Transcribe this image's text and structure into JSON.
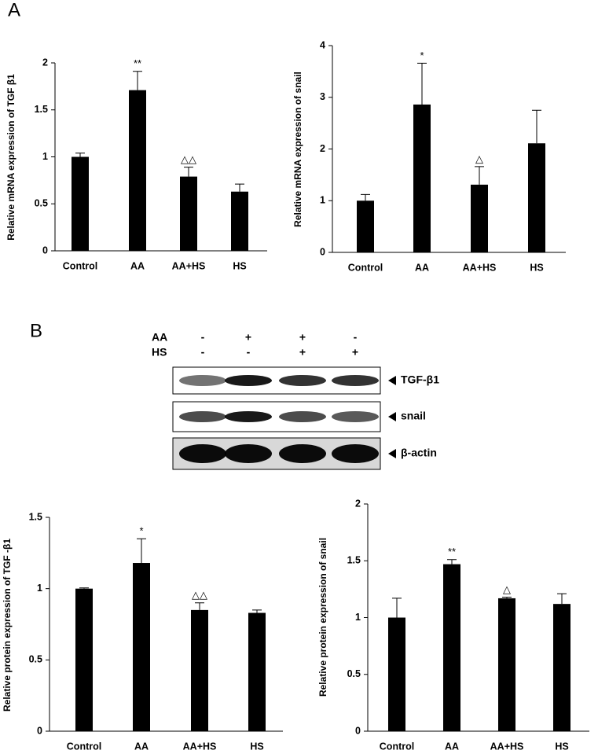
{
  "panel_labels": [
    "A",
    "B"
  ],
  "blot": {
    "rows": [
      {
        "name": "AA",
        "signs": [
          "-",
          "+",
          "+",
          "-"
        ]
      },
      {
        "name": "HS",
        "signs": [
          "-",
          "-",
          "+",
          "+"
        ]
      }
    ],
    "bands": [
      "TGF-β1",
      "snail",
      "β-actin"
    ]
  },
  "chart_data": [
    {
      "type": "bar",
      "y_label": "Relative mRNA expression of  TGF β1",
      "color": "#000000",
      "categories": [
        "Control",
        "AA",
        "AA+HS",
        "HS"
      ],
      "values": [
        1.0,
        1.71,
        0.79,
        0.63
      ],
      "errors": [
        0.04,
        0.2,
        0.1,
        0.08
      ],
      "annotations": [
        null,
        "**",
        "△△",
        null
      ],
      "ylim": [
        0,
        2
      ],
      "yticks": [
        0,
        0.5,
        1,
        1.5,
        2
      ]
    },
    {
      "type": "bar",
      "y_label": "Relative mRNA expression of  snail",
      "color": "#000000",
      "categories": [
        "Control",
        "AA",
        "AA+HS",
        "HS"
      ],
      "values": [
        1.0,
        2.86,
        1.31,
        2.11
      ],
      "errors": [
        0.12,
        0.8,
        0.35,
        0.64
      ],
      "annotations": [
        null,
        "*",
        "△",
        null
      ],
      "ylim": [
        0,
        4
      ],
      "yticks": [
        0,
        1,
        2,
        3,
        4
      ]
    },
    {
      "type": "bar",
      "y_label": "Relative protein expression of  TGF -β1",
      "color": "#000000",
      "categories": [
        "Control",
        "AA",
        "AA+HS",
        "HS"
      ],
      "values": [
        1.0,
        1.18,
        0.85,
        0.83
      ],
      "errors": [
        0.005,
        0.17,
        0.05,
        0.02
      ],
      "annotations": [
        null,
        "*",
        "△△",
        null
      ],
      "ylim": [
        0,
        1.5
      ],
      "yticks": [
        0,
        0.5,
        1,
        1.5
      ]
    },
    {
      "type": "bar",
      "y_label": "Relative protein expression of  snail",
      "color": "#000000",
      "categories": [
        "Control",
        "AA",
        "AA+HS",
        "HS"
      ],
      "values": [
        1.0,
        1.47,
        1.17,
        1.12
      ],
      "errors": [
        0.17,
        0.04,
        0.01,
        0.09
      ],
      "annotations": [
        null,
        "**",
        "△",
        null
      ],
      "ylim": [
        0,
        2
      ],
      "yticks": [
        0,
        0.5,
        1,
        1.5,
        2
      ]
    }
  ]
}
